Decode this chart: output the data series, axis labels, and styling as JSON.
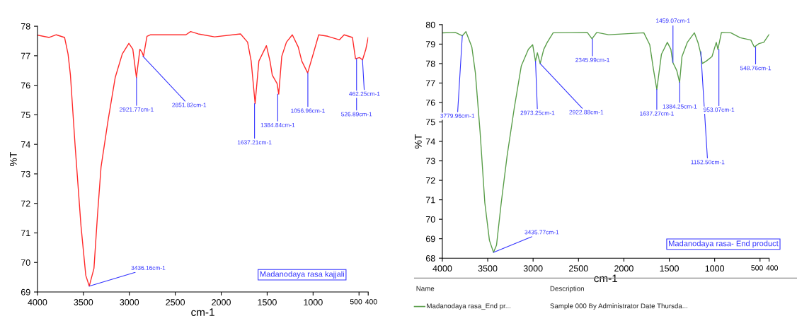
{
  "chart_data": [
    {
      "type": "line",
      "xlabel": "cm-1",
      "ylabel": "%T",
      "xlim": [
        4000,
        400
      ],
      "ylim": [
        69,
        78
      ],
      "xticks": [
        4000,
        3500,
        3000,
        2500,
        2000,
        1500,
        1000,
        500,
        400
      ],
      "yticks": [
        69,
        70,
        71,
        72,
        73,
        74,
        75,
        76,
        77,
        78
      ],
      "grid": false,
      "legend": false,
      "series": [
        {
          "color": "#ff2a2a",
          "x": [
            4000,
            3872,
            3795,
            3705,
            3667,
            3641,
            3590,
            3526,
            3474,
            3436,
            3385,
            3346,
            3308,
            3231,
            3154,
            3077,
            3005,
            2962,
            2923,
            2885,
            2859,
            2846,
            2808,
            2769,
            2385,
            2333,
            2251,
            2072,
            1790,
            1713,
            1674,
            1631,
            1590,
            1508,
            1469,
            1444,
            1392,
            1374,
            1341,
            1290,
            1226,
            1162,
            1123,
            1059,
            995,
            939,
            841,
            713,
            662,
            572,
            538,
            495,
            462,
            426,
            400
          ],
          "values": [
            77.7,
            77.62,
            77.71,
            77.62,
            77.06,
            76.34,
            73.95,
            71.23,
            69.56,
            69.2,
            69.8,
            71.63,
            73.23,
            74.82,
            76.26,
            77.06,
            77.42,
            77.22,
            76.26,
            77.22,
            77.1,
            76.98,
            77.66,
            77.71,
            77.71,
            77.82,
            77.74,
            77.64,
            77.74,
            77.46,
            76.82,
            75.38,
            76.82,
            77.34,
            76.82,
            76.34,
            76.06,
            75.7,
            76.98,
            77.46,
            77.71,
            77.3,
            76.82,
            76.42,
            77.1,
            77.71,
            77.66,
            77.54,
            77.71,
            77.62,
            76.9,
            76.94,
            76.86,
            77.22,
            77.62
          ]
        }
      ],
      "annotations": [
        {
          "text": "3436.16cm-1",
          "x": 3436.16,
          "y": 69.2
        },
        {
          "text": "2921.77cm-1",
          "x": 2921.77,
          "y": 76.26
        },
        {
          "text": "2851.82cm-1",
          "x": 2851.82,
          "y": 76.98
        },
        {
          "text": "1637.21cm-1",
          "x": 1637.21,
          "y": 75.38
        },
        {
          "text": "1384.84cm-1",
          "x": 1384.84,
          "y": 75.7
        },
        {
          "text": "1056.96cm-1",
          "x": 1056.96,
          "y": 76.42
        },
        {
          "text": "526.89cm-1",
          "x": 526.89,
          "y": 76.9
        },
        {
          "text": "462.25cm-1",
          "x": 462.25,
          "y": 76.86
        },
        "Madanodaya rasa kajjali"
      ]
    },
    {
      "type": "line",
      "xlabel": "cm-1",
      "ylabel": "%T",
      "xlim": [
        4000,
        400
      ],
      "ylim": [
        68,
        80
      ],
      "xticks": [
        4000,
        3500,
        3000,
        2500,
        2000,
        1500,
        1000,
        500,
        400
      ],
      "yticks": [
        68,
        69,
        70,
        71,
        72,
        73,
        74,
        75,
        76,
        77,
        78,
        79,
        80
      ],
      "grid": false,
      "legend": false,
      "series": [
        {
          "color": "#5a9e4a",
          "x": [
            4000,
            3857,
            3779,
            3740,
            3675,
            3636,
            3584,
            3532,
            3481,
            3436,
            3403,
            3351,
            3286,
            3208,
            3130,
            3052,
            3005,
            2974,
            2953,
            2922,
            2883,
            2844,
            2779,
            2403,
            2351,
            2299,
            2168,
            1780,
            1715,
            1676,
            1637,
            1586,
            1521,
            1482,
            1461,
            1417,
            1386,
            1360,
            1301,
            1223,
            1184,
            1158,
            1137,
            1094,
            1029,
            982,
            964,
            925,
            822,
            718,
            601,
            563,
            511,
            459,
            400
          ],
          "values": [
            79.58,
            79.6,
            79.43,
            79.64,
            78.85,
            77.52,
            74.48,
            70.85,
            68.91,
            68.3,
            68.67,
            70.85,
            73.27,
            75.7,
            77.88,
            78.73,
            78.97,
            78.12,
            78.55,
            78.0,
            78.73,
            79.09,
            79.58,
            79.6,
            79.27,
            79.6,
            79.48,
            79.58,
            78.97,
            77.76,
            76.67,
            78.48,
            79.09,
            78.73,
            78.06,
            77.64,
            77.03,
            78.36,
            79.09,
            79.58,
            79.09,
            78.61,
            78.0,
            78.12,
            78.36,
            79.09,
            78.73,
            79.6,
            79.58,
            79.33,
            79.21,
            78.85,
            79.03,
            79.09,
            79.5
          ]
        }
      ],
      "annotations": [
        {
          "text": "3779.96cm-1",
          "x": 3779.96,
          "y": 79.43
        },
        {
          "text": "3435.77cm-1",
          "x": 3435.77,
          "y": 68.3
        },
        {
          "text": "2973.25cm-1",
          "x": 2973.25,
          "y": 78.12
        },
        {
          "text": "2922.88cm-1",
          "x": 2922.88,
          "y": 78.0
        },
        {
          "text": "2345.99cm-1",
          "x": 2345.99,
          "y": 79.27
        },
        {
          "text": "1637.27cm-1",
          "x": 1637.27,
          "y": 76.67
        },
        {
          "text": "1459.07cm-1",
          "x": 1459.07,
          "y": 78.06
        },
        {
          "text": "1384.25cm-1",
          "x": 1384.25,
          "y": 77.03
        },
        {
          "text": "1152.50cm-1",
          "x": 1152.5,
          "y": 78.61
        },
        {
          "text": "953.07cm-1",
          "x": 953.07,
          "y": 78.73
        },
        {
          "text": "548.76cm-1",
          "x": 548.76,
          "y": 78.85
        },
        "Madanodaya rasa- End product",
        "Name",
        "Description",
        "Madanodaya rasa_End pr...",
        "Sample 000 By Administrator Date Thursda..."
      ]
    }
  ]
}
